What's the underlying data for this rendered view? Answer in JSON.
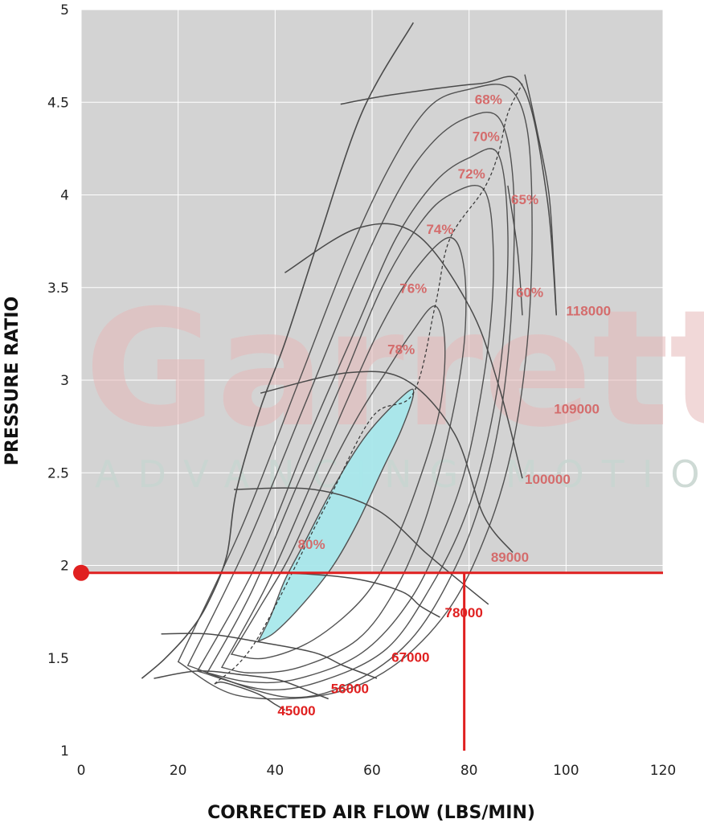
{
  "watermark": {
    "brand": "Garrett",
    "tagline": "ADVANCING MOTION"
  },
  "chart_data": {
    "type": "line",
    "title": "",
    "xlabel": "CORRECTED AIR FLOW (LBS/MIN)",
    "ylabel": "PRESSURE RATIO",
    "xlim": [
      0,
      120
    ],
    "ylim": [
      1,
      5
    ],
    "x_ticks": [
      "0",
      "20",
      "40",
      "60",
      "80",
      "100",
      "120"
    ],
    "y_ticks": [
      "1",
      "1.5",
      "2",
      "2.5",
      "3",
      "3.5",
      "4",
      "4.5",
      "5"
    ],
    "grid": true,
    "colors": {
      "plot_bg": "#d3d3d3",
      "grid": "#ffffff",
      "curve": "#4a4a4a",
      "highlight": "#e02020",
      "efficiency_island": "#a8e8ec",
      "speed_label_upper": "#d46c6c",
      "speed_label_lower": "#e02020"
    },
    "surge_line": [
      [
        12.5,
        1.39
      ],
      [
        17,
        1.49
      ],
      [
        22,
        1.63
      ],
      [
        26,
        1.79
      ],
      [
        30,
        2.05
      ],
      [
        32,
        2.4
      ],
      [
        37,
        2.85
      ],
      [
        42,
        3.2
      ],
      [
        49,
        3.76
      ],
      [
        58,
        4.45
      ],
      [
        68.5,
        4.93
      ]
    ],
    "speed_lines": [
      {
        "label": "45000",
        "points": [
          [
            27.5,
            1.36
          ],
          [
            29,
            1.37
          ],
          [
            33,
            1.34
          ],
          [
            37,
            1.3
          ],
          [
            40,
            1.25
          ],
          [
            42,
            1.22
          ]
        ]
      },
      {
        "label": "56000",
        "points": [
          [
            15,
            1.39
          ],
          [
            24,
            1.43
          ],
          [
            33,
            1.41
          ],
          [
            41,
            1.38
          ],
          [
            48,
            1.31
          ],
          [
            51,
            1.28
          ]
        ]
      },
      {
        "label": "67000",
        "points": [
          [
            16.5,
            1.63
          ],
          [
            26,
            1.63
          ],
          [
            36,
            1.59
          ],
          [
            48,
            1.53
          ],
          [
            54,
            1.46
          ],
          [
            61,
            1.39
          ]
        ]
      },
      {
        "label": "78000",
        "points": [
          [
            30,
            1.96
          ],
          [
            42,
            1.96
          ],
          [
            56,
            1.93
          ],
          [
            66,
            1.86
          ],
          [
            70,
            1.78
          ],
          [
            74,
            1.72
          ]
        ]
      },
      {
        "label": "89000",
        "points": [
          [
            31.5,
            2.41
          ],
          [
            48,
            2.41
          ],
          [
            61,
            2.3
          ],
          [
            71,
            2.07
          ],
          [
            76,
            1.96
          ],
          [
            84,
            1.79
          ]
        ]
      },
      {
        "label": "100000",
        "points": [
          [
            37,
            2.93
          ],
          [
            55,
            3.04
          ],
          [
            67,
            3.0
          ],
          [
            77,
            2.71
          ],
          [
            83,
            2.27
          ],
          [
            89,
            2.07
          ]
        ]
      },
      {
        "label": "109000",
        "points": [
          [
            42,
            3.58
          ],
          [
            57,
            3.82
          ],
          [
            69,
            3.79
          ],
          [
            80,
            3.4
          ],
          [
            86,
            2.98
          ],
          [
            91,
            2.47
          ]
        ]
      },
      {
        "label": "118000",
        "points": [
          [
            53.5,
            4.49
          ],
          [
            64,
            4.54
          ],
          [
            82,
            4.6
          ],
          [
            91,
            4.59
          ],
          [
            96,
            4.0
          ],
          [
            98,
            3.35
          ]
        ]
      }
    ],
    "efficiency_islands": [
      {
        "label": "80%",
        "percent": 80,
        "filled": true,
        "points": [
          [
            36.5,
            1.59
          ],
          [
            39,
            1.72
          ],
          [
            42,
            1.92
          ],
          [
            46,
            2.12
          ],
          [
            52,
            2.42
          ],
          [
            59,
            2.71
          ],
          [
            67,
            2.93
          ],
          [
            68.5,
            2.92
          ],
          [
            66,
            2.73
          ],
          [
            62,
            2.51
          ],
          [
            57,
            2.23
          ],
          [
            52,
            2.0
          ],
          [
            46,
            1.8
          ],
          [
            40,
            1.64
          ],
          [
            36.5,
            1.59
          ]
        ]
      },
      {
        "label": "78%",
        "percent": 78,
        "filled": false,
        "points": [
          [
            31,
            1.52
          ],
          [
            37,
            1.78
          ],
          [
            43,
            2.05
          ],
          [
            50,
            2.45
          ],
          [
            57,
            2.8
          ],
          [
            63,
            3.05
          ],
          [
            68,
            3.25
          ],
          [
            73,
            3.4
          ],
          [
            75,
            3.2
          ],
          [
            74,
            2.85
          ],
          [
            70,
            2.48
          ],
          [
            64,
            2.08
          ],
          [
            58,
            1.82
          ],
          [
            48,
            1.6
          ],
          [
            38,
            1.5
          ],
          [
            31,
            1.52
          ]
        ]
      },
      {
        "label": "76%",
        "percent": 76,
        "filled": false,
        "points": [
          [
            29,
            1.45
          ],
          [
            38,
            1.88
          ],
          [
            46,
            2.35
          ],
          [
            55,
            2.9
          ],
          [
            62,
            3.3
          ],
          [
            69,
            3.6
          ],
          [
            76,
            3.77
          ],
          [
            79,
            3.6
          ],
          [
            79,
            3.2
          ],
          [
            76,
            2.74
          ],
          [
            71,
            2.25
          ],
          [
            65,
            1.88
          ],
          [
            57,
            1.6
          ],
          [
            45,
            1.45
          ],
          [
            35,
            1.42
          ],
          [
            29,
            1.45
          ]
        ]
      },
      {
        "label": "74%",
        "percent": 74,
        "filled": false,
        "points": [
          [
            26,
            1.42
          ],
          [
            35,
            1.85
          ],
          [
            45,
            2.46
          ],
          [
            54,
            3.0
          ],
          [
            62,
            3.5
          ],
          [
            70,
            3.85
          ],
          [
            76,
            4.0
          ],
          [
            83,
            4.03
          ],
          [
            85,
            3.7
          ],
          [
            84,
            3.2
          ],
          [
            80,
            2.6
          ],
          [
            75,
            2.2
          ],
          [
            68,
            1.82
          ],
          [
            58,
            1.53
          ],
          [
            45,
            1.39
          ],
          [
            35,
            1.37
          ],
          [
            26,
            1.42
          ]
        ]
      },
      {
        "label": "72%",
        "percent": 72,
        "filled": false,
        "points": [
          [
            24,
            1.43
          ],
          [
            36,
            2.0
          ],
          [
            47,
            2.7
          ],
          [
            57,
            3.3
          ],
          [
            65,
            3.77
          ],
          [
            73,
            4.07
          ],
          [
            80,
            4.2
          ],
          [
            86,
            4.22
          ],
          [
            88,
            3.8
          ],
          [
            87,
            3.2
          ],
          [
            84,
            2.7
          ],
          [
            79,
            2.25
          ],
          [
            72,
            1.88
          ],
          [
            63,
            1.55
          ],
          [
            50,
            1.38
          ],
          [
            38,
            1.33
          ],
          [
            24,
            1.43
          ]
        ]
      },
      {
        "label": "70%",
        "percent": 70,
        "filled": false,
        "points": [
          [
            22,
            1.46
          ],
          [
            34,
            2.1
          ],
          [
            46,
            2.86
          ],
          [
            56,
            3.5
          ],
          [
            65,
            4.0
          ],
          [
            72,
            4.27
          ],
          [
            79,
            4.41
          ],
          [
            86,
            4.42
          ],
          [
            89,
            4.1
          ],
          [
            89,
            3.5
          ],
          [
            87,
            2.9
          ],
          [
            83,
            2.4
          ],
          [
            77,
            1.98
          ],
          [
            68,
            1.6
          ],
          [
            56,
            1.37
          ],
          [
            42,
            1.29
          ],
          [
            22,
            1.46
          ]
        ]
      },
      {
        "label": "68%",
        "percent": 68,
        "filled": false,
        "points": [
          [
            20,
            1.48
          ],
          [
            33,
            2.2
          ],
          [
            45,
            3.0
          ],
          [
            55,
            3.67
          ],
          [
            64,
            4.17
          ],
          [
            72,
            4.48
          ],
          [
            80,
            4.57
          ],
          [
            88,
            4.58
          ],
          [
            92,
            4.35
          ],
          [
            93,
            3.8
          ],
          [
            92,
            3.2
          ],
          [
            89,
            2.65
          ],
          [
            84,
            2.2
          ],
          [
            76,
            1.77
          ],
          [
            64,
            1.45
          ],
          [
            50,
            1.3
          ],
          [
            32,
            1.3
          ],
          [
            20,
            1.48
          ]
        ]
      }
    ],
    "efficiency_label_positions": [
      {
        "label": "68%",
        "x": 84,
        "y": 4.49
      },
      {
        "label": "70%",
        "x": 83.5,
        "y": 4.29
      },
      {
        "label": "72%",
        "x": 80.5,
        "y": 4.09
      },
      {
        "label": "65%",
        "x": 91.5,
        "y": 3.95
      },
      {
        "label": "74%",
        "x": 74,
        "y": 3.79
      },
      {
        "label": "76%",
        "x": 68.5,
        "y": 3.47
      },
      {
        "label": "60%",
        "x": 92.5,
        "y": 3.45
      },
      {
        "label": "78%",
        "x": 66,
        "y": 3.14
      },
      {
        "label": "80%",
        "x": 47.5,
        "y": 2.09
      }
    ],
    "speed_label_positions": [
      {
        "label": "118000",
        "x": 100,
        "y": 3.35
      },
      {
        "label": "109000",
        "x": 97.5,
        "y": 2.82
      },
      {
        "label": "100000",
        "x": 91.5,
        "y": 2.44
      },
      {
        "label": "89000",
        "x": 84.5,
        "y": 2.02
      },
      {
        "label": "78000",
        "x": 75,
        "y": 1.72
      },
      {
        "label": "67000",
        "x": 64,
        "y": 1.48
      },
      {
        "label": "56000",
        "x": 51.5,
        "y": 1.31
      },
      {
        "label": "45000",
        "x": 40.5,
        "y": 1.19
      }
    ],
    "choke_lines": [
      {
        "percent": 65,
        "points": [
          [
            88,
            4.05
          ],
          [
            90,
            3.7
          ],
          [
            91,
            3.35
          ]
        ]
      },
      {
        "percent": 60,
        "points": [
          [
            91.5,
            4.65
          ],
          [
            94,
            4.35
          ],
          [
            96.5,
            4.0
          ],
          [
            97.5,
            3.6
          ],
          [
            98,
            3.35
          ]
        ]
      }
    ],
    "peak_efficiency_line": [
      [
        27.5,
        1.36
      ],
      [
        36,
        1.59
      ],
      [
        50,
        2.3
      ],
      [
        60,
        2.8
      ],
      [
        68.5,
        2.93
      ],
      [
        73,
        3.4
      ],
      [
        76,
        3.76
      ],
      [
        83,
        4.03
      ],
      [
        86,
        4.22
      ],
      [
        88,
        4.44
      ],
      [
        91,
        4.6
      ]
    ],
    "operating_point": {
      "x": 0,
      "y": 1.96,
      "flow_marker_x": 79
    }
  }
}
